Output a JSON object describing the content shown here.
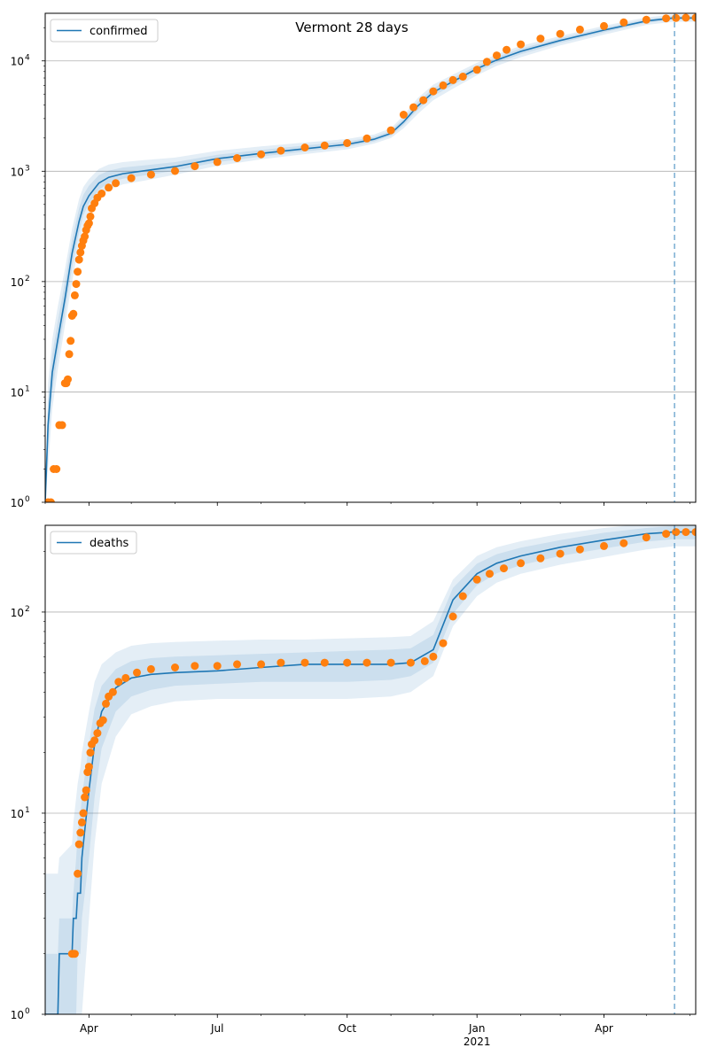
{
  "figure": {
    "title": "Vermont 28 days"
  },
  "colors": {
    "model_line": "#1f77b4",
    "band": "#1f77b4",
    "observed": "#ff7f0e",
    "vline": "#1f77b4",
    "grid": "#b0b0b0"
  },
  "chart_data": [
    {
      "type": "line",
      "name": "confirmed",
      "yscale": "log",
      "ylim": [
        1,
        27000
      ],
      "xlim": [
        "2020-03-01",
        "2021-06-05"
      ],
      "grid": "y-major",
      "legend": "top-left",
      "forecast_start": "2021-05-21",
      "xticks": [
        {
          "date": "2020-04-01",
          "label": "Apr"
        },
        {
          "date": "2020-07-01",
          "label": "Jul"
        },
        {
          "date": "2020-10-01",
          "label": "Oct"
        },
        {
          "date": "2021-01-01",
          "label": "Jan",
          "sublabel": "2021"
        },
        {
          "date": "2021-04-01",
          "label": "Apr"
        }
      ],
      "yticks": [
        {
          "value": 1,
          "base": "10",
          "exp": "0"
        },
        {
          "value": 10,
          "base": "10",
          "exp": "1"
        },
        {
          "value": 100,
          "base": "10",
          "exp": "2"
        },
        {
          "value": 1000,
          "base": "10",
          "exp": "3"
        },
        {
          "value": 10000,
          "base": "10",
          "exp": "4"
        }
      ],
      "model": {
        "x": [
          "2020-03-01",
          "2020-03-03",
          "2020-03-06",
          "2020-03-10",
          "2020-03-15",
          "2020-03-20",
          "2020-03-25",
          "2020-03-28",
          "2020-04-01",
          "2020-04-08",
          "2020-04-15",
          "2020-04-25",
          "2020-05-10",
          "2020-06-01",
          "2020-07-01",
          "2020-08-01",
          "2020-09-01",
          "2020-10-01",
          "2020-10-20",
          "2020-11-01",
          "2020-11-10",
          "2020-11-20",
          "2020-12-01",
          "2020-12-15",
          "2021-01-01",
          "2021-01-15",
          "2021-02-01",
          "2021-03-01",
          "2021-04-01",
          "2021-05-01",
          "2021-05-20",
          "2021-06-05"
        ],
        "y": [
          1,
          5,
          15,
          30,
          70,
          180,
          350,
          480,
          600,
          780,
          880,
          950,
          1010,
          1100,
          1300,
          1450,
          1600,
          1750,
          1950,
          2200,
          2800,
          3900,
          5200,
          6500,
          8500,
          10200,
          12200,
          15300,
          19000,
          23000,
          24500,
          24500
        ],
        "bands": [
          {
            "lower": [
              1,
              2,
              7,
              16,
              40,
              100,
              220,
              320,
              420,
              580,
              680,
              760,
              820,
              930,
              1120,
              1280,
              1430,
              1580,
              1780,
              2000,
              2450,
              3300,
              4400,
              5600,
              7400,
              9000,
              10800,
              13800,
              17300,
              21200,
              22600,
              22600
            ],
            "upper": [
              1,
              12,
              30,
              60,
              130,
              300,
              560,
              720,
              850,
              1050,
              1150,
              1210,
              1260,
              1330,
              1530,
              1680,
              1820,
              1960,
              2150,
              2450,
              3200,
              4600,
              6100,
              7500,
              9600,
              11500,
              13700,
              16800,
              20800,
              24800,
              26300,
              26300
            ]
          },
          {
            "lower": [
              1,
              3,
              10,
              22,
              52,
              135,
              280,
              400,
              510,
              680,
              780,
              855,
              915,
              1010,
              1210,
              1360,
              1510,
              1660,
              1860,
              2100,
              2620,
              3600,
              4800,
              6050,
              7950,
              9600,
              11500,
              14550,
              18150,
              22100,
              23550,
              23550
            ],
            "upper": [
              1,
              8,
              22,
              44,
              100,
              240,
              460,
              610,
              740,
              920,
              1010,
              1080,
              1130,
              1210,
              1410,
              1560,
              1710,
              1860,
              2050,
              2330,
              3000,
              4250,
              5650,
              7000,
              9050,
              10850,
              12950,
              16050,
              19900,
              23900,
              25400,
              25400
            ]
          }
        ]
      },
      "observed": {
        "x": [
          "2020-03-03",
          "2020-03-05",
          "2020-03-07",
          "2020-03-09",
          "2020-03-11",
          "2020-03-13",
          "2020-03-15",
          "2020-03-16",
          "2020-03-17",
          "2020-03-18",
          "2020-03-19",
          "2020-03-20",
          "2020-03-21",
          "2020-03-22",
          "2020-03-23",
          "2020-03-24",
          "2020-03-25",
          "2020-03-26",
          "2020-03-27",
          "2020-03-28",
          "2020-03-29",
          "2020-03-30",
          "2020-03-31",
          "2020-04-01",
          "2020-04-02",
          "2020-04-03",
          "2020-04-05",
          "2020-04-07",
          "2020-04-10",
          "2020-04-15",
          "2020-04-20",
          "2020-05-01",
          "2020-05-15",
          "2020-06-01",
          "2020-06-15",
          "2020-07-01",
          "2020-07-15",
          "2020-08-01",
          "2020-08-15",
          "2020-09-01",
          "2020-09-15",
          "2020-10-01",
          "2020-10-15",
          "2020-11-01",
          "2020-11-10",
          "2020-11-17",
          "2020-11-24",
          "2020-12-01",
          "2020-12-08",
          "2020-12-15",
          "2020-12-22",
          "2021-01-01",
          "2021-01-08",
          "2021-01-15",
          "2021-01-22",
          "2021-02-01",
          "2021-02-15",
          "2021-03-01",
          "2021-03-15",
          "2021-04-01",
          "2021-04-15",
          "2021-05-01",
          "2021-05-15",
          "2021-05-22",
          "2021-05-29",
          "2021-06-05"
        ],
        "y": [
          1,
          1,
          2,
          2,
          5,
          5,
          12,
          12,
          13,
          22,
          29,
          49,
          51,
          75,
          95,
          123,
          158,
          184,
          211,
          235,
          256,
          293,
          321,
          338,
          389,
          461,
          512,
          575,
          628,
          711,
          779,
          866,
          932,
          1005,
          1112,
          1212,
          1315,
          1423,
          1535,
          1640,
          1710,
          1800,
          1980,
          2350,
          3250,
          3800,
          4400,
          5300,
          6000,
          6700,
          7200,
          8300,
          9800,
          11200,
          12600,
          14100,
          15900,
          17600,
          19200,
          20700,
          22300,
          23600,
          24300,
          24500,
          24600,
          24600
        ]
      }
    },
    {
      "type": "line",
      "name": "deaths",
      "yscale": "log",
      "ylim": [
        1,
        270
      ],
      "xlim": [
        "2020-03-01",
        "2021-06-05"
      ],
      "grid": "y-major",
      "legend": "top-left",
      "forecast_start": "2021-05-21",
      "xticks": [
        {
          "date": "2020-04-01",
          "label": "Apr"
        },
        {
          "date": "2020-07-01",
          "label": "Jul"
        },
        {
          "date": "2020-10-01",
          "label": "Oct"
        },
        {
          "date": "2021-01-01",
          "label": "Jan",
          "sublabel": "2021"
        },
        {
          "date": "2021-04-01",
          "label": "Apr"
        }
      ],
      "yticks": [
        {
          "value": 1,
          "base": "10",
          "exp": "0"
        },
        {
          "value": 10,
          "base": "10",
          "exp": "1"
        },
        {
          "value": 100,
          "base": "10",
          "exp": "2"
        }
      ],
      "model": {
        "x": [
          "2020-03-01",
          "2020-03-10",
          "2020-03-11",
          "2020-03-20",
          "2020-03-21",
          "2020-03-23",
          "2020-03-24",
          "2020-03-26",
          "2020-03-27",
          "2020-04-01",
          "2020-04-05",
          "2020-04-10",
          "2020-04-20",
          "2020-05-01",
          "2020-05-15",
          "2020-06-01",
          "2020-07-01",
          "2020-08-01",
          "2020-09-01",
          "2020-10-01",
          "2020-11-01",
          "2020-11-15",
          "2020-12-01",
          "2020-12-15",
          "2021-01-01",
          "2021-01-15",
          "2021-02-01",
          "2021-03-01",
          "2021-04-01",
          "2021-05-01",
          "2021-05-20",
          "2021-06-05"
        ],
        "y": [
          1,
          1,
          2,
          2,
          3,
          3,
          4,
          4,
          6,
          13,
          22,
          32,
          42,
          47,
          49,
          50,
          51,
          53,
          55,
          55,
          55,
          56,
          65,
          115,
          155,
          175,
          190,
          210,
          228,
          245,
          250,
          250
        ],
        "bands": [
          {
            "lower": [
              1,
              1,
              1,
              1,
              1,
              1,
              1,
              1,
              1,
              3,
              7,
              14,
              24,
              31,
              34,
              36,
              37,
              37,
              37,
              37,
              38,
              40,
              48,
              85,
              120,
              140,
              155,
              172,
              188,
              205,
              212,
              212
            ],
            "upper": [
              5,
              5,
              6,
              7,
              9,
              12,
              14,
              17,
              20,
              32,
              45,
              55,
              63,
              68,
              70,
              71,
              72,
              73,
              73,
              74,
              75,
              76,
              90,
              145,
              190,
              210,
              225,
              245,
              262,
              275,
              280,
              280
            ]
          },
          {
            "lower": [
              1,
              1,
              1,
              1,
              1,
              1,
              2,
              2,
              3,
              6,
              12,
              21,
              32,
              38,
              41,
              43,
              44,
              45,
              45,
              45,
              46,
              48,
              56,
              98,
              136,
              156,
              171,
              190,
              207,
              224,
              230,
              230
            ],
            "upper": [
              2,
              2,
              3,
              3,
              4,
              6,
              8,
              10,
              12,
              22,
              33,
              43,
              52,
              57,
              59,
              60,
              61,
              62,
              63,
              64,
              65,
              66,
              77,
              132,
              174,
              194,
              209,
              228,
              248,
              262,
              268,
              268
            ]
          }
        ]
      },
      "observed": {
        "x": [
          "2020-03-20",
          "2020-03-21",
          "2020-03-22",
          "2020-03-24",
          "2020-03-25",
          "2020-03-26",
          "2020-03-27",
          "2020-03-28",
          "2020-03-29",
          "2020-03-30",
          "2020-03-31",
          "2020-04-01",
          "2020-04-02",
          "2020-04-03",
          "2020-04-05",
          "2020-04-07",
          "2020-04-09",
          "2020-04-11",
          "2020-04-13",
          "2020-04-15",
          "2020-04-18",
          "2020-04-22",
          "2020-04-27",
          "2020-05-05",
          "2020-05-15",
          "2020-06-01",
          "2020-06-15",
          "2020-07-01",
          "2020-07-15",
          "2020-08-01",
          "2020-08-15",
          "2020-09-01",
          "2020-09-15",
          "2020-10-01",
          "2020-10-15",
          "2020-11-01",
          "2020-11-15",
          "2020-11-25",
          "2020-12-01",
          "2020-12-08",
          "2020-12-15",
          "2020-12-22",
          "2021-01-01",
          "2021-01-10",
          "2021-01-20",
          "2021-02-01",
          "2021-02-15",
          "2021-03-01",
          "2021-03-15",
          "2021-04-01",
          "2021-04-15",
          "2021-05-01",
          "2021-05-15",
          "2021-05-22",
          "2021-05-29",
          "2021-06-05"
        ],
        "y": [
          2,
          2,
          2,
          5,
          7,
          8,
          9,
          10,
          12,
          13,
          16,
          17,
          20,
          22,
          23,
          25,
          28,
          29,
          35,
          38,
          40,
          45,
          47,
          50,
          52,
          53,
          54,
          54,
          55,
          55,
          56,
          56,
          56,
          56,
          56,
          56,
          56,
          57,
          60,
          70,
          95,
          120,
          145,
          155,
          165,
          175,
          185,
          195,
          205,
          213,
          220,
          235,
          245,
          250,
          250,
          250
        ]
      }
    }
  ]
}
